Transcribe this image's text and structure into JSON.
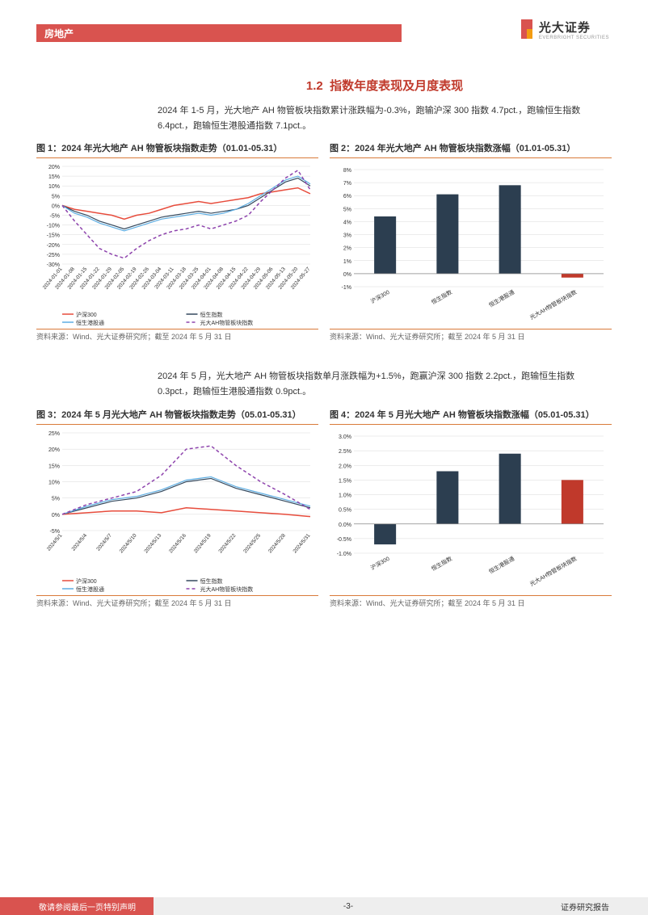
{
  "header": {
    "category": "房地产"
  },
  "logo": {
    "cn": "光大证券",
    "en": "EVERBRIGHT SECURITIES"
  },
  "section": {
    "number": "1.2",
    "title": "指数年度表现及月度表现"
  },
  "para1": "2024 年 1-5 月，光大地产 AH 物管板块指数累计涨跌幅为-0.3%，跑输沪深 300 指数 4.7pct.，跑输恒生指数 6.4pct.，跑输恒生港股通指数 7.1pct.。",
  "para2": "2024 年 5 月，光大地产 AH 物管板块指数单月涨跌幅为+1.5%，跑赢沪深 300 指数 2.2pct.，跑输恒生指数 0.3pct.，跑输恒生港股通指数 0.9pct.。",
  "chart1": {
    "title": "图 1：2024 年光大地产 AH 物管板块指数走势（01.01-05.31）",
    "source": "资料来源：Wind、光大证券研究所；截至 2024 年 5 月 31 日",
    "type": "line",
    "ylim": [
      -30,
      20
    ],
    "ytick_step": 5,
    "ytick_labels": [
      "-30%",
      "-25%",
      "-20%",
      "-15%",
      "-10%",
      "-5%",
      "0%",
      "5%",
      "10%",
      "15%",
      "20%"
    ],
    "x_labels": [
      "2024-01-01",
      "2024-01-08",
      "2024-01-15",
      "2024-01-22",
      "2024-01-29",
      "2024-02-05",
      "2024-02-19",
      "2024-02-26",
      "2024-03-04",
      "2024-03-11",
      "2024-03-18",
      "2024-03-25",
      "2024-04-01",
      "2024-04-08",
      "2024-04-15",
      "2024-04-22",
      "2024-04-29",
      "2024-05-06",
      "2024-05-13",
      "2024-05-20",
      "2024-05-27"
    ],
    "grid_color": "#d9d9d9",
    "background_color": "#ffffff",
    "series": [
      {
        "name": "沪深300",
        "color": "#e74c3c",
        "width": 1.5,
        "values": [
          0,
          -2,
          -3,
          -4,
          -5,
          -7,
          -5,
          -4,
          -2,
          0,
          1,
          2,
          1,
          2,
          3,
          4,
          6,
          7,
          8,
          9,
          6
        ]
      },
      {
        "name": "恒生指数",
        "color": "#34495e",
        "width": 1.2,
        "values": [
          0,
          -3,
          -5,
          -8,
          -10,
          -12,
          -10,
          -8,
          -6,
          -5,
          -4,
          -3,
          -4,
          -3,
          -2,
          0,
          4,
          8,
          12,
          14,
          10
        ]
      },
      {
        "name": "恒生港股通",
        "color": "#5dade2",
        "width": 1.2,
        "values": [
          0,
          -4,
          -6,
          -9,
          -11,
          -13,
          -11,
          -9,
          -7,
          -6,
          -5,
          -4,
          -5,
          -4,
          -2,
          1,
          5,
          9,
          13,
          15,
          11
        ]
      },
      {
        "name": "光大AH物管板块指数",
        "color": "#8e44ad",
        "width": 1.5,
        "dash": "4,3",
        "values": [
          0,
          -8,
          -15,
          -22,
          -25,
          -27,
          -22,
          -18,
          -15,
          -13,
          -12,
          -10,
          -12,
          -10,
          -8,
          -5,
          2,
          8,
          14,
          18,
          8
        ]
      }
    ],
    "legend": [
      "沪深300",
      "恒生指数",
      "恒生港股通",
      "光大AH物管板块指数"
    ]
  },
  "chart2": {
    "title": "图 2：2024 年光大地产 AH 物管板块指数涨幅（01.01-05.31）",
    "source": "资料来源：Wind、光大证券研究所；截至 2024 年 5 月 31 日",
    "type": "bar",
    "ylim": [
      -1,
      8
    ],
    "ytick_step": 1,
    "ytick_labels": [
      "-1%",
      "0%",
      "1%",
      "2%",
      "3%",
      "4%",
      "5%",
      "6%",
      "7%",
      "8%"
    ],
    "grid_color": "#d9d9d9",
    "bar_width": 0.35,
    "categories": [
      "沪深300",
      "恒生指数",
      "恒生港股通",
      "光大AH物管板块指数"
    ],
    "values": [
      4.4,
      6.1,
      6.8,
      -0.3
    ],
    "colors": [
      "#2c3e50",
      "#2c3e50",
      "#2c3e50",
      "#c0392b"
    ]
  },
  "chart3": {
    "title": "图 3：2024 年 5 月光大地产 AH 物管板块指数走势（05.01-05.31）",
    "source": "资料来源：Wind、光大证券研究所；截至 2024 年 5 月 31 日",
    "type": "line",
    "ylim": [
      -5,
      25
    ],
    "ytick_step": 5,
    "ytick_labels": [
      "-5%",
      "0%",
      "5%",
      "10%",
      "15%",
      "20%",
      "25%"
    ],
    "x_labels": [
      "2024/5/1",
      "2024/5/4",
      "2024/5/7",
      "2024/5/10",
      "2024/5/13",
      "2024/5/16",
      "2024/5/19",
      "2024/5/22",
      "2024/5/25",
      "2024/5/28",
      "2024/5/31"
    ],
    "grid_color": "#d9d9d9",
    "series": [
      {
        "name": "沪深300",
        "color": "#e74c3c",
        "width": 1.5,
        "values": [
          0,
          0.5,
          1,
          1,
          0.5,
          2,
          1.5,
          1,
          0.5,
          0,
          -0.7
        ]
      },
      {
        "name": "恒生指数",
        "color": "#34495e",
        "width": 1.2,
        "values": [
          0,
          2,
          4,
          5,
          7,
          10,
          11,
          8,
          6,
          4,
          2
        ]
      },
      {
        "name": "恒生港股通",
        "color": "#5dade2",
        "width": 1.2,
        "values": [
          0,
          2.5,
          4.5,
          5.5,
          7.5,
          10.5,
          11.5,
          8.5,
          6.5,
          4.5,
          2.5
        ]
      },
      {
        "name": "光大AH物管板块指数",
        "color": "#8e44ad",
        "width": 1.5,
        "dash": "4,3",
        "values": [
          0,
          3,
          5,
          7,
          12,
          20,
          21,
          15,
          10,
          6,
          1.5
        ]
      }
    ],
    "legend": [
      "沪深300",
      "恒生指数",
      "恒生港股通",
      "光大AH物管板块指数"
    ]
  },
  "chart4": {
    "title": "图 4：2024 年 5 月光大地产 AH 物管板块指数涨幅（05.01-05.31）",
    "source": "资料来源：Wind、光大证券研究所；截至 2024 年 5 月 31 日",
    "type": "bar",
    "ylim": [
      -1,
      3
    ],
    "ytick_step": 0.5,
    "ytick_labels": [
      "-1.0%",
      "-0.5%",
      "0.0%",
      "0.5%",
      "1.0%",
      "1.5%",
      "2.0%",
      "2.5%",
      "3.0%"
    ],
    "grid_color": "#d9d9d9",
    "bar_width": 0.35,
    "categories": [
      "沪深300",
      "恒生指数",
      "恒生港股通",
      "光大AH物管板块指数"
    ],
    "values": [
      -0.7,
      1.8,
      2.4,
      1.5
    ],
    "colors": [
      "#2c3e50",
      "#2c3e50",
      "#2c3e50",
      "#c0392b"
    ]
  },
  "footer": {
    "left": "敬请参阅最后一页特别声明",
    "center": "-3-",
    "right": "证券研究报告"
  }
}
